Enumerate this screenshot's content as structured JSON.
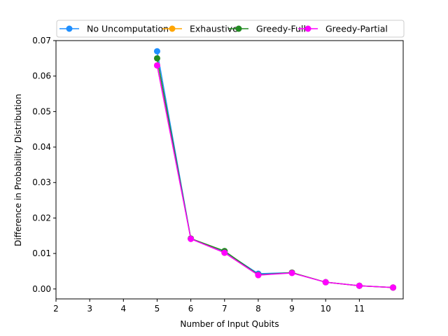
{
  "chart_data": {
    "type": "line",
    "title": "",
    "xlabel": "Number of Input Qubits",
    "ylabel": "Difference in Probability Distribution",
    "x": [
      5,
      6,
      7,
      8,
      9,
      10,
      11,
      12
    ],
    "xlim": [
      2,
      12.3
    ],
    "ylim": [
      -0.0028,
      0.07
    ],
    "xticks": [
      2,
      3,
      4,
      5,
      6,
      7,
      8,
      9,
      10,
      11
    ],
    "xtick_labels": [
      "2",
      "3",
      "4",
      "5",
      "6",
      "7",
      "8",
      "9",
      "10",
      "11"
    ],
    "yticks": [
      0.0,
      0.01,
      0.02,
      0.03,
      0.04,
      0.05,
      0.06,
      0.07
    ],
    "ytick_labels": [
      "0.00",
      "0.01",
      "0.02",
      "0.03",
      "0.04",
      "0.05",
      "0.06",
      "0.07"
    ],
    "grid": false,
    "legend_position": "top",
    "series": [
      {
        "name": "No Uncomputation",
        "color": "#1f8fff",
        "marker": "circle",
        "values": [
          0.067,
          0.0142,
          0.0105,
          0.0043,
          0.0046,
          0.0019,
          0.0009,
          0.0004
        ]
      },
      {
        "name": "Exhaustive",
        "color": "#ffa500",
        "marker": "circle",
        "values": [
          0.063,
          0.0142,
          0.0102,
          0.0039,
          0.0046,
          0.0019,
          0.0009,
          0.0004
        ]
      },
      {
        "name": "Greedy-Full",
        "color": "#228b22",
        "marker": "circle",
        "values": [
          0.065,
          0.0142,
          0.0107,
          0.004,
          0.0046,
          0.0019,
          0.0009,
          0.0004
        ]
      },
      {
        "name": "Greedy-Partial",
        "color": "#ff00ff",
        "marker": "circle",
        "values": [
          0.063,
          0.0141,
          0.0102,
          0.0039,
          0.0045,
          0.0019,
          0.0009,
          0.0004
        ]
      }
    ]
  }
}
